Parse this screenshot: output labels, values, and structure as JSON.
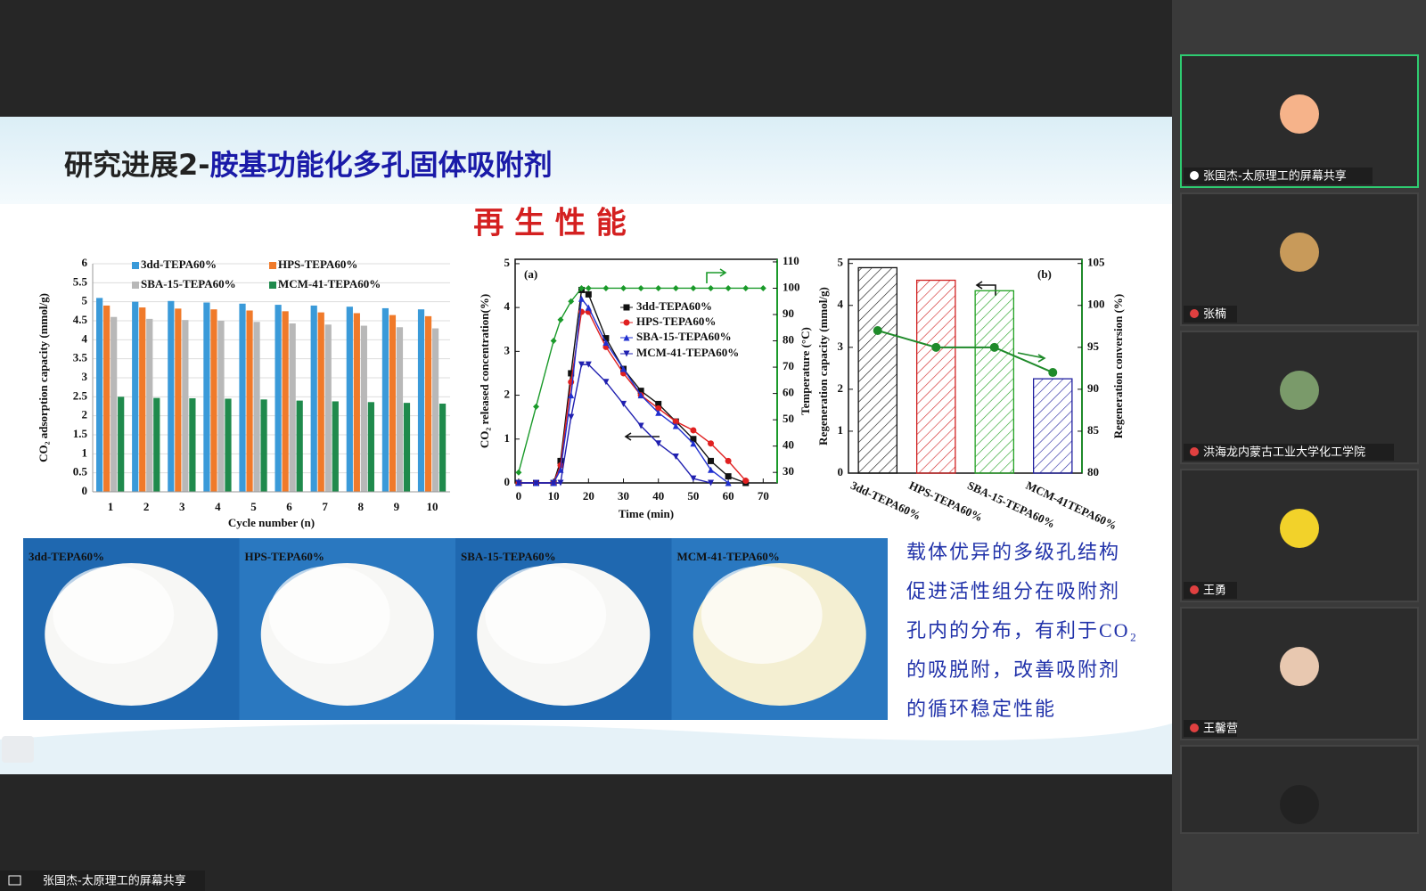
{
  "meeting": {
    "share_banner": "张国杰-太原理工的屏幕共享",
    "participants": [
      "张国杰-太原理工的屏幕共享",
      "张楠",
      "洪海龙内蒙古工业大学化工学院",
      "王勇",
      "王馨营"
    ]
  },
  "slide": {
    "title_prefix": "研究进展2-",
    "title": "胺基功能化多孔固体吸附剂",
    "subtitle": "再 生 性 能",
    "photos": [
      "3dd-TEPA60%",
      "HPS-TEPA60%",
      "SBA-15-TEPA60%",
      "MCM-41-TEPA60%"
    ],
    "text": [
      "载体优异的多级孔结构",
      "促进活性组分在吸附剂",
      "孔内的分布，有利于CO₂",
      "的吸脱附，改善吸附剂",
      "的循环稳定性能"
    ]
  },
  "chart_data": [
    {
      "type": "bar",
      "y_label": "CO₂ adsorption capacity (mmol/g)",
      "x_label": "Cycle number (n)",
      "categories": [
        1,
        2,
        3,
        4,
        5,
        6,
        7,
        8,
        9,
        10
      ],
      "series": [
        {
          "name": "3dd-TEPA60%",
          "color": "#3a9ad9",
          "values": [
            5.1,
            5.0,
            5.02,
            4.98,
            4.95,
            4.92,
            4.9,
            4.87,
            4.83,
            4.8
          ]
        },
        {
          "name": "HPS-TEPA60%",
          "color": "#f07a2a",
          "values": [
            4.9,
            4.85,
            4.82,
            4.8,
            4.77,
            4.75,
            4.72,
            4.7,
            4.65,
            4.62
          ]
        },
        {
          "name": "SBA-15-TEPA60%",
          "color": "#b8b8b8",
          "values": [
            4.6,
            4.55,
            4.52,
            4.5,
            4.47,
            4.43,
            4.4,
            4.37,
            4.33,
            4.3
          ]
        },
        {
          "name": "MCM-41-TEPA60%",
          "color": "#1f8a4c",
          "values": [
            2.5,
            2.47,
            2.46,
            2.45,
            2.43,
            2.4,
            2.38,
            2.36,
            2.34,
            2.32
          ]
        }
      ],
      "ylim": [
        0,
        6
      ],
      "yticks": [
        0,
        0.5,
        1,
        1.5,
        2,
        2.5,
        3,
        3.5,
        4,
        4.5,
        5,
        5.5,
        6
      ],
      "grid": true
    },
    {
      "type": "line",
      "panel": "(a)",
      "x_label": "Time (min)",
      "y_label": "CO₂ released concentration(%)",
      "y2_label": "Temperature (°C)",
      "x": [
        0,
        5,
        10,
        12,
        15,
        18,
        20,
        25,
        30,
        35,
        40,
        45,
        50,
        55,
        60,
        65,
        70
      ],
      "series": [
        {
          "name": "3dd-TEPA60%",
          "color": "#111111",
          "marker": "square",
          "values": [
            0,
            0,
            0,
            0.5,
            2.5,
            4.4,
            4.3,
            3.3,
            2.6,
            2.1,
            1.8,
            1.4,
            1.0,
            0.5,
            0.15,
            0,
            null
          ]
        },
        {
          "name": "HPS-TEPA60%",
          "color": "#e02020",
          "marker": "circle",
          "values": [
            0,
            0,
            0,
            0.4,
            2.3,
            3.9,
            3.9,
            3.1,
            2.5,
            2.0,
            1.7,
            1.4,
            1.2,
            0.9,
            0.5,
            0.05,
            null
          ]
        },
        {
          "name": "SBA-15-TEPA60%",
          "color": "#2030d0",
          "marker": "triangle-up",
          "values": [
            0,
            0,
            0,
            0.3,
            2.0,
            4.2,
            4.0,
            3.2,
            2.6,
            2.0,
            1.6,
            1.3,
            0.9,
            0.3,
            0,
            null,
            null
          ]
        },
        {
          "name": "MCM-41-TEPA60%",
          "color": "#2020b0",
          "marker": "triangle-down",
          "values": [
            0,
            0,
            0,
            0,
            1.5,
            2.7,
            2.7,
            2.3,
            1.8,
            1.3,
            0.9,
            0.6,
            0.1,
            0,
            null,
            null,
            null
          ]
        },
        {
          "color": "#1a9a2a",
          "marker": "diamond",
          "axis": "y2",
          "values": [
            30,
            55,
            80,
            88,
            95,
            100,
            100,
            100,
            100,
            100,
            100,
            100,
            100,
            100,
            100,
            100,
            100
          ]
        }
      ],
      "xlim": [
        -1,
        74
      ],
      "xticks": [
        0,
        10,
        20,
        30,
        40,
        50,
        60,
        70
      ],
      "ylim": [
        0,
        5.1
      ],
      "yticks": [
        0,
        1,
        2,
        3,
        4,
        5
      ],
      "y2lim": [
        26,
        111
      ],
      "y2ticks": [
        30,
        40,
        50,
        60,
        70,
        80,
        90,
        100,
        110
      ]
    },
    {
      "type": "combo",
      "panel": "(b)",
      "y_label": "Regeneration capacity (mmol/g)",
      "y2_label": "Regeneration conversion (%)",
      "categories": [
        "3dd-TEPA60%",
        "HPS-TEPA60%",
        "SBA-15-TEPA60%",
        "MCM-41TEPA60%"
      ],
      "series": [
        {
          "kind": "bar",
          "colors": [
            "#111111",
            "#d02020",
            "#20a020",
            "#2020a0"
          ],
          "values": [
            4.9,
            4.6,
            4.35,
            2.25
          ]
        },
        {
          "kind": "line",
          "axis": "y2",
          "color": "#1f8a2a",
          "values": [
            97,
            95,
            95,
            92
          ]
        }
      ],
      "ylim": [
        0,
        5.1
      ],
      "yticks": [
        0,
        1,
        2,
        3,
        4,
        5
      ],
      "y2lim": [
        80,
        105.5
      ],
      "y2ticks": [
        80,
        85,
        90,
        95,
        100,
        105
      ]
    }
  ]
}
